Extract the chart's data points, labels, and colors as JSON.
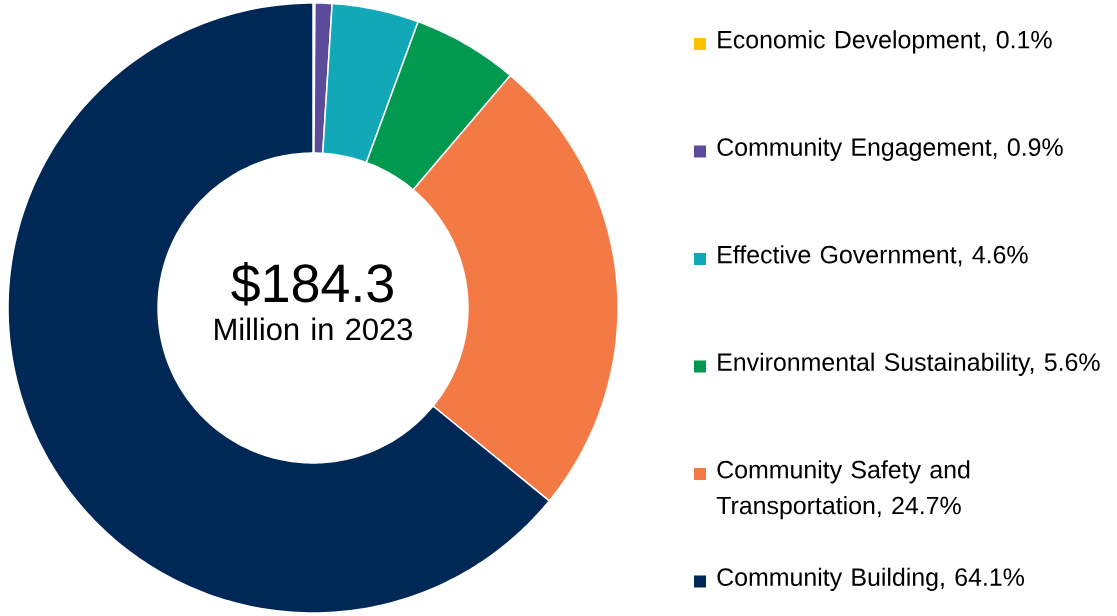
{
  "chart_data": {
    "type": "donut",
    "title": "$184.3",
    "subtitle": "Million in 2023",
    "categories": [
      "Economic Development, 0.1%",
      "Community Engagement, 0.9%",
      "Effective Government, 4.6%",
      "Environmental Sustainability, 5.6%",
      "Community Safety and Transportation, 24.7%",
      "Community Building, 64.1%"
    ],
    "values": [
      0.1,
      0.9,
      4.6,
      5.6,
      24.7,
      64.1
    ],
    "colors": [
      "#ffc000",
      "#5b4b9a",
      "#13a8b8",
      "#00994f",
      "#f47a45",
      "#002856"
    ],
    "legend": "right"
  }
}
